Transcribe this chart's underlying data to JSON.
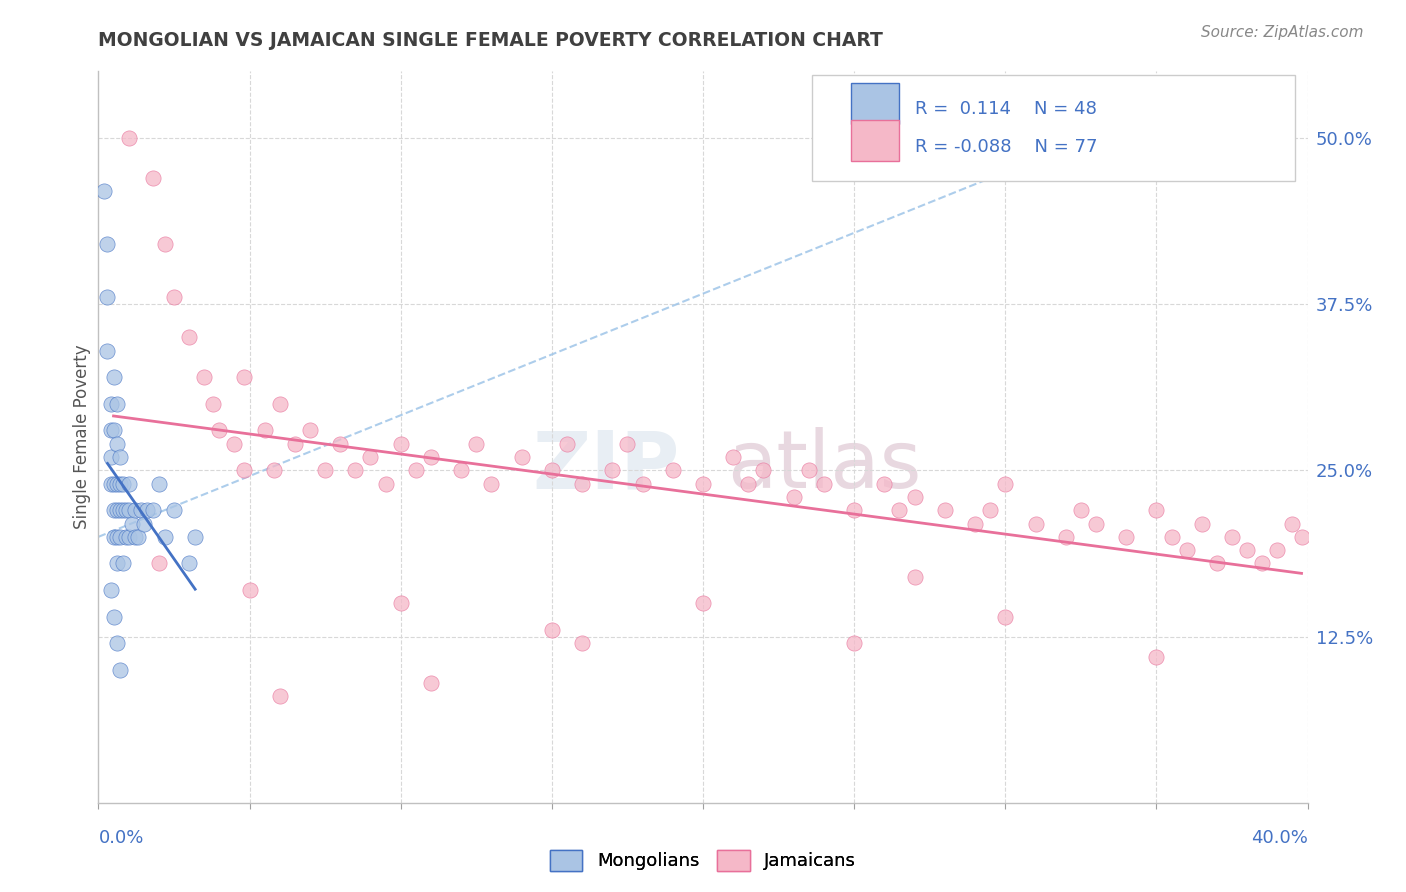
{
  "title": "MONGOLIAN VS JAMAICAN SINGLE FEMALE POVERTY CORRELATION CHART",
  "source_text": "Source: ZipAtlas.com",
  "ylabel": "Single Female Poverty",
  "xlim": [
    0.0,
    0.4
  ],
  "ylim": [
    0.0,
    0.55
  ],
  "yticks": [
    0.125,
    0.25,
    0.375,
    0.5
  ],
  "ytick_labels": [
    "12.5%",
    "25.0%",
    "37.5%",
    "50.0%"
  ],
  "mongolian_fill_color": "#aac4e4",
  "jamaican_fill_color": "#f5b8c8",
  "trend_mongolian_color": "#4472c4",
  "trend_jamaican_color": "#e8709a",
  "dashed_line_color": "#9fc5e8",
  "background_color": "#ffffff",
  "axis_color": "#4472c4",
  "title_color": "#404040",
  "grid_color": "#d8d8d8",
  "mongolians_x": [
    0.002,
    0.003,
    0.003,
    0.003,
    0.004,
    0.004,
    0.004,
    0.004,
    0.005,
    0.005,
    0.005,
    0.005,
    0.005,
    0.006,
    0.006,
    0.006,
    0.006,
    0.006,
    0.006,
    0.007,
    0.007,
    0.007,
    0.007,
    0.008,
    0.008,
    0.008,
    0.009,
    0.009,
    0.01,
    0.01,
    0.01,
    0.011,
    0.012,
    0.012,
    0.013,
    0.014,
    0.015,
    0.016,
    0.018,
    0.02,
    0.022,
    0.025,
    0.03,
    0.032,
    0.004,
    0.005,
    0.006,
    0.007
  ],
  "mongolians_y": [
    0.46,
    0.42,
    0.38,
    0.34,
    0.3,
    0.28,
    0.26,
    0.24,
    0.32,
    0.28,
    0.24,
    0.22,
    0.2,
    0.3,
    0.27,
    0.24,
    0.22,
    0.2,
    0.18,
    0.26,
    0.24,
    0.22,
    0.2,
    0.24,
    0.22,
    0.18,
    0.22,
    0.2,
    0.24,
    0.22,
    0.2,
    0.21,
    0.22,
    0.2,
    0.2,
    0.22,
    0.21,
    0.22,
    0.22,
    0.24,
    0.2,
    0.22,
    0.18,
    0.2,
    0.16,
    0.14,
    0.12,
    0.1
  ],
  "jamaicans_x": [
    0.01,
    0.018,
    0.022,
    0.025,
    0.03,
    0.035,
    0.038,
    0.04,
    0.045,
    0.048,
    0.048,
    0.055,
    0.058,
    0.06,
    0.065,
    0.07,
    0.075,
    0.08,
    0.085,
    0.09,
    0.095,
    0.1,
    0.105,
    0.11,
    0.12,
    0.125,
    0.13,
    0.14,
    0.15,
    0.155,
    0.16,
    0.17,
    0.175,
    0.18,
    0.19,
    0.2,
    0.21,
    0.215,
    0.22,
    0.23,
    0.235,
    0.24,
    0.25,
    0.26,
    0.265,
    0.27,
    0.28,
    0.29,
    0.295,
    0.3,
    0.31,
    0.32,
    0.325,
    0.33,
    0.34,
    0.35,
    0.355,
    0.36,
    0.365,
    0.37,
    0.375,
    0.38,
    0.385,
    0.39,
    0.395,
    0.398,
    0.05,
    0.1,
    0.15,
    0.2,
    0.25,
    0.3,
    0.35,
    0.02,
    0.06,
    0.11,
    0.16,
    0.27
  ],
  "jamaicans_y": [
    0.5,
    0.47,
    0.42,
    0.38,
    0.35,
    0.32,
    0.3,
    0.28,
    0.27,
    0.32,
    0.25,
    0.28,
    0.25,
    0.3,
    0.27,
    0.28,
    0.25,
    0.27,
    0.25,
    0.26,
    0.24,
    0.27,
    0.25,
    0.26,
    0.25,
    0.27,
    0.24,
    0.26,
    0.25,
    0.27,
    0.24,
    0.25,
    0.27,
    0.24,
    0.25,
    0.24,
    0.26,
    0.24,
    0.25,
    0.23,
    0.25,
    0.24,
    0.22,
    0.24,
    0.22,
    0.23,
    0.22,
    0.21,
    0.22,
    0.24,
    0.21,
    0.2,
    0.22,
    0.21,
    0.2,
    0.22,
    0.2,
    0.19,
    0.21,
    0.18,
    0.2,
    0.19,
    0.18,
    0.19,
    0.21,
    0.2,
    0.16,
    0.15,
    0.13,
    0.15,
    0.12,
    0.14,
    0.11,
    0.18,
    0.08,
    0.09,
    0.12,
    0.17
  ]
}
